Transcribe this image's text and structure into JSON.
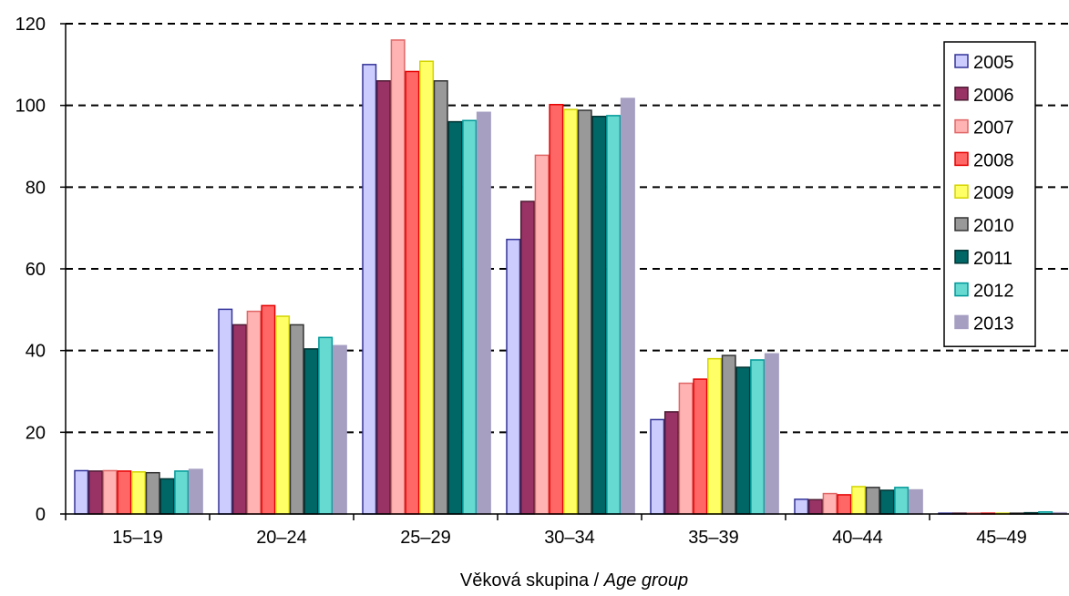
{
  "chart_data": {
    "type": "bar",
    "title": "",
    "xlabel": "Věková skupina / ",
    "xlabel_italic": "Age group",
    "ylabel": "",
    "ylim": [
      0,
      120
    ],
    "yticks": [
      0,
      20,
      40,
      60,
      80,
      100,
      120
    ],
    "grid": "dashed horizontal",
    "legend_position": "right",
    "categories": [
      "15–19",
      "20–24",
      "25–29",
      "30–34",
      "35–39",
      "40–44",
      "45–49"
    ],
    "series": [
      {
        "name": "2005",
        "color": "#ccccff",
        "stroke": "#333399",
        "values": [
          10.6,
          50.1,
          110.0,
          67.2,
          23.1,
          3.6,
          0.2
        ]
      },
      {
        "name": "2006",
        "color": "#993366",
        "stroke": "#4d1a33",
        "values": [
          10.5,
          46.3,
          106.0,
          76.5,
          25.0,
          3.5,
          0.2
        ]
      },
      {
        "name": "2007",
        "color": "#ffb3b3",
        "stroke": "#e06666",
        "values": [
          10.6,
          49.6,
          116.0,
          87.8,
          32.0,
          5.0,
          0.2
        ]
      },
      {
        "name": "2008",
        "color": "#ff6666",
        "stroke": "#e60000",
        "values": [
          10.5,
          51.0,
          108.3,
          100.2,
          33.0,
          4.7,
          0.2
        ]
      },
      {
        "name": "2009",
        "color": "#ffff66",
        "stroke": "#d4d400",
        "values": [
          10.3,
          48.4,
          110.8,
          99.0,
          38.0,
          6.7,
          0.2
        ]
      },
      {
        "name": "2010",
        "color": "#999999",
        "stroke": "#333333",
        "values": [
          10.1,
          46.3,
          106.0,
          98.8,
          38.8,
          6.5,
          0.2
        ]
      },
      {
        "name": "2011",
        "color": "#006666",
        "stroke": "#003333",
        "values": [
          8.6,
          40.4,
          96.0,
          97.3,
          35.9,
          5.8,
          0.3
        ]
      },
      {
        "name": "2012",
        "color": "#66d9d0",
        "stroke": "#009999",
        "values": [
          10.5,
          43.2,
          96.3,
          97.5,
          37.7,
          6.5,
          0.5
        ]
      },
      {
        "name": "2013",
        "color": "#a69fc2",
        "stroke": "#a69fc2",
        "values": [
          10.9,
          41.2,
          98.3,
          101.7,
          39.2,
          5.9,
          0.3
        ]
      }
    ]
  }
}
